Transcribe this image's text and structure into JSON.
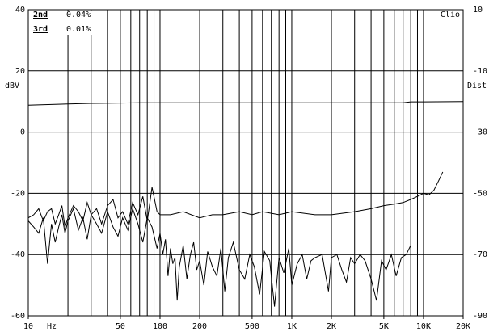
{
  "chart_data": {
    "type": "line",
    "log_x": true,
    "grid": true,
    "ylabel": "dBV",
    "y2label": "Dist",
    "xlabel": "Hz",
    "brand": "Clio",
    "xlim": [
      10,
      20000
    ],
    "ylim": [
      -60,
      40
    ],
    "y2lim": [
      -90,
      10
    ],
    "xticks": [
      10,
      50,
      100,
      200,
      500,
      {
        "value": 1000,
        "label": "1K"
      },
      {
        "value": 2000,
        "label": "2K"
      },
      {
        "value": 5000,
        "label": "5K"
      },
      {
        "value": 10000,
        "label": "10K"
      },
      {
        "value": 20000,
        "label": "20K"
      }
    ],
    "xgrid": [
      10,
      20,
      30,
      40,
      50,
      60,
      70,
      80,
      90,
      100,
      200,
      300,
      400,
      500,
      600,
      700,
      800,
      900,
      1000,
      2000,
      3000,
      4000,
      5000,
      6000,
      7000,
      8000,
      9000,
      10000,
      20000
    ],
    "yticks": [
      40,
      20,
      0,
      -20,
      -40,
      -60
    ],
    "y2ticks": [
      10,
      -10,
      -30,
      -50,
      -70,
      -90
    ],
    "series": [
      {
        "color": "#000000",
        "x": [
          10,
          20,
          30,
          50,
          70,
          100,
          200,
          500,
          1000,
          2000,
          5000,
          7000,
          8000,
          10000,
          20000
        ],
        "values": [
          8.8,
          9.2,
          9.4,
          9.5,
          9.6,
          9.6,
          9.6,
          9.6,
          9.6,
          9.6,
          9.6,
          9.6,
          9.9,
          9.9,
          10.0
        ]
      },
      {
        "name": "2nd",
        "legend_value": "0.04%",
        "color": "#000000",
        "x": [
          10,
          11,
          12,
          13,
          14,
          15,
          16,
          17,
          18,
          19,
          20,
          22,
          24,
          26,
          28,
          30,
          33,
          36,
          40,
          44,
          48,
          52,
          57,
          62,
          68,
          74,
          80,
          87,
          95,
          100,
          120,
          150,
          200,
          250,
          300,
          400,
          500,
          600,
          800,
          1000,
          1500,
          2000,
          3000,
          4000,
          5000,
          6000,
          7000,
          8000,
          9000,
          10000,
          11000,
          12000,
          13000,
          14000
        ],
        "values": [
          -28,
          -27,
          -25,
          -29,
          -26,
          -25,
          -30,
          -27,
          -24,
          -31,
          -28,
          -24,
          -26,
          -29,
          -23,
          -27,
          -25,
          -30,
          -24,
          -22,
          -28,
          -26,
          -30,
          -23,
          -27,
          -21,
          -29,
          -18,
          -26,
          -27,
          -27,
          -26,
          -28,
          -27,
          -27,
          -26,
          -27,
          -26,
          -27,
          -26,
          -27,
          -27,
          -26,
          -25,
          -24,
          -23.5,
          -23,
          -22,
          -21,
          -20,
          -20.5,
          -19,
          -16,
          -13
        ]
      },
      {
        "name": "3rd",
        "legend_value": "0.01%",
        "color": "#000000",
        "x": [
          10,
          11,
          12,
          13,
          14,
          15,
          16,
          17,
          18,
          19,
          20,
          22,
          24,
          26,
          28,
          30,
          33,
          36,
          40,
          44,
          48,
          52,
          57,
          62,
          68,
          74,
          80,
          87,
          95,
          100,
          105,
          110,
          115,
          120,
          125,
          130,
          135,
          140,
          150,
          160,
          170,
          180,
          190,
          200,
          215,
          230,
          250,
          270,
          290,
          310,
          330,
          360,
          400,
          440,
          480,
          520,
          570,
          620,
          680,
          740,
          800,
          870,
          950,
          1000,
          1100,
          1200,
          1300,
          1400,
          1500,
          1700,
          1900,
          2000,
          2200,
          2400,
          2600,
          2800,
          3000,
          3300,
          3600,
          4000,
          4400,
          4800,
          5200,
          5700,
          6200,
          6800,
          7400,
          8000
        ],
        "values": [
          -29,
          -31,
          -33,
          -28,
          -43,
          -30,
          -36,
          -31,
          -27,
          -33,
          -29,
          -25,
          -32,
          -28,
          -35,
          -27,
          -30,
          -33,
          -26,
          -31,
          -34,
          -28,
          -32,
          -25,
          -30,
          -36,
          -28,
          -31,
          -38,
          -33,
          -40,
          -35,
          -47,
          -38,
          -43,
          -41,
          -55,
          -44,
          -37,
          -48,
          -40,
          -36,
          -45,
          -42,
          -50,
          -39,
          -44,
          -47,
          -38,
          -52,
          -41,
          -36,
          -45,
          -48,
          -40,
          -44,
          -53,
          -39,
          -42,
          -57,
          -41,
          -46,
          -38,
          -50,
          -43,
          -40,
          -48,
          -42,
          -41,
          -40,
          -52,
          -41,
          -40,
          -45,
          -49,
          -41,
          -43,
          -40,
          -42,
          -48,
          -55,
          -42,
          -45,
          -40,
          -47,
          -41,
          -40,
          -37
        ]
      }
    ]
  }
}
